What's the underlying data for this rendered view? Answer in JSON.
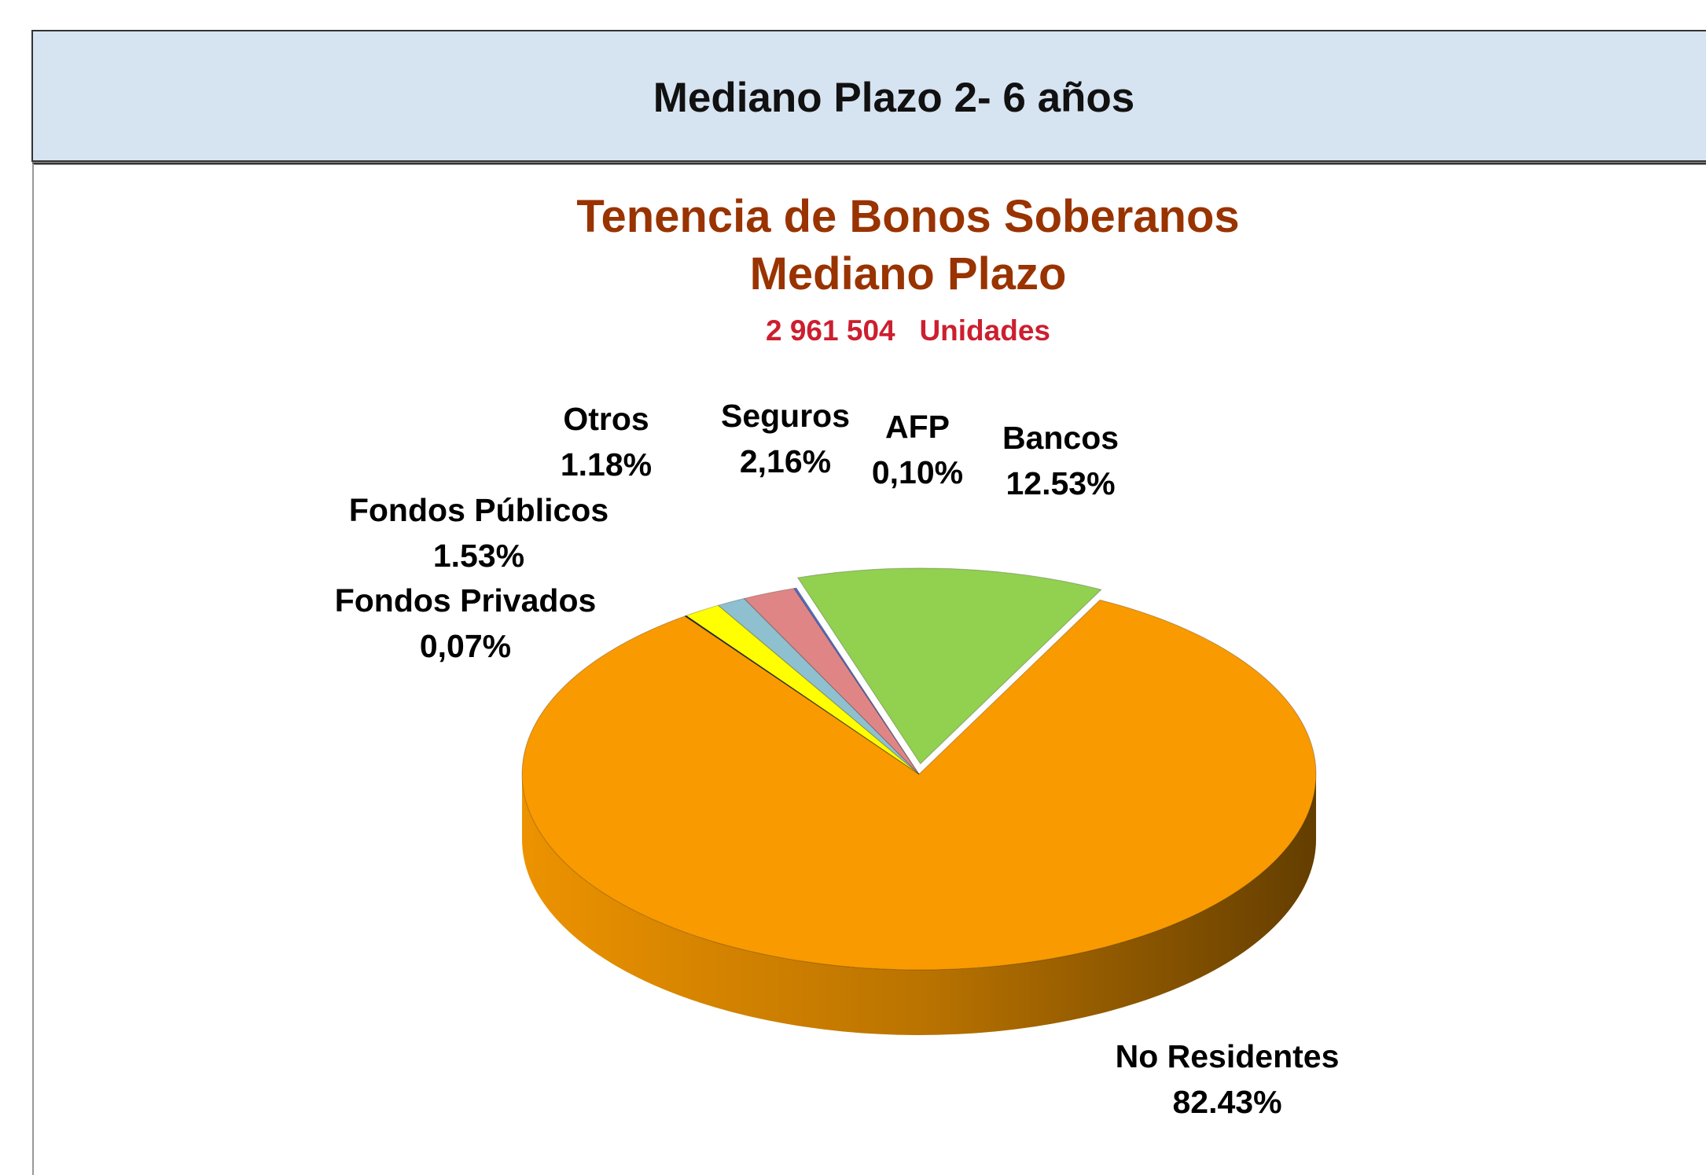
{
  "header": {
    "title": "Mediano Plazo 2- 6 años"
  },
  "chart_data": {
    "type": "pie",
    "title": [
      "Tenencia de Bonos Soberanos",
      "Mediano Plazo"
    ],
    "subtitle": "2 961 504   Unidades",
    "categories": [
      "Bancos",
      "No Residentes",
      "Fondos Privados",
      "Fondos Públicos",
      "Otros",
      "Seguros",
      "AFP"
    ],
    "values": [
      12.53,
      82.43,
      0.07,
      1.53,
      1.18,
      2.16,
      0.1
    ],
    "value_labels": [
      "12.53%",
      "82.43%",
      "0,07%",
      "1.53%",
      "1.18%",
      "2,16%",
      "0,10%"
    ],
    "colors": [
      "#92d050",
      "#f99a00",
      "#0f1d40",
      "#ffff00",
      "#8fc0d0",
      "#e08585",
      "#4f6fd0"
    ]
  }
}
